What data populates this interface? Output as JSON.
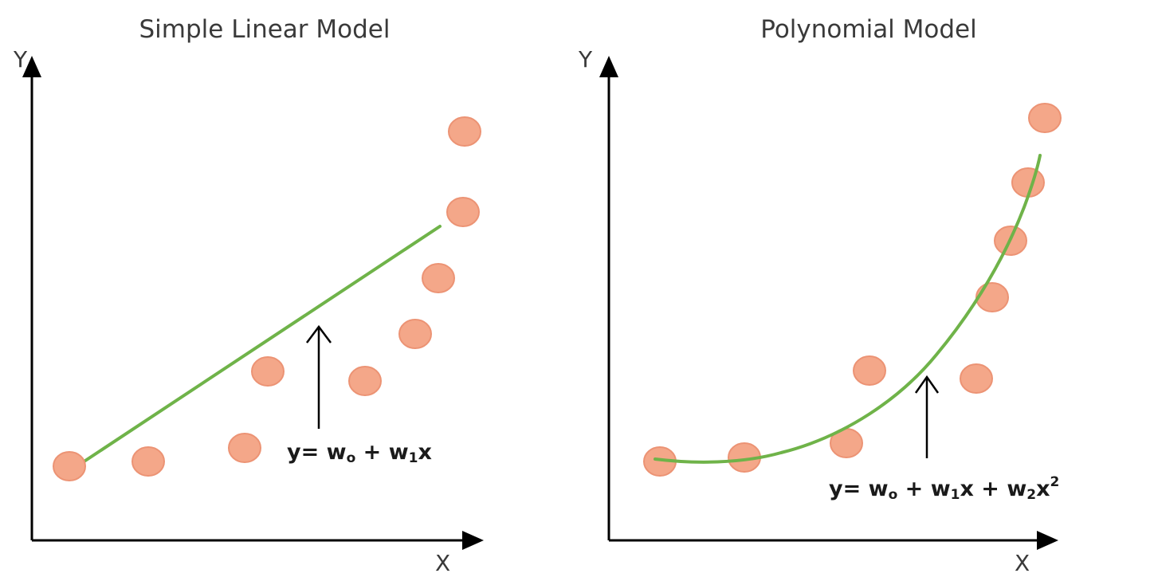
{
  "panels": [
    {
      "title": "Simple Linear Model",
      "y_axis_label": "Y",
      "x_axis_label": "X",
      "fit_type": "linear",
      "equation": {
        "lead": "y= w",
        "s0": "o",
        "mid": " + w",
        "s1": "1",
        "tail": "x"
      }
    },
    {
      "title": "Polynomial Model",
      "y_axis_label": "Y",
      "x_axis_label": "X",
      "fit_type": "polynomial",
      "equation": {
        "lead": "y= w",
        "s0": "o",
        "mid": " + w",
        "s1": "1",
        "mid2": "x + w",
        "s2": "2",
        "tail": "x",
        "sup": "2"
      }
    }
  ],
  "colors": {
    "point_fill": "#f4a789",
    "point_stroke": "#ec9374",
    "fit_line": "#6fb349",
    "axes": "#000000"
  }
}
